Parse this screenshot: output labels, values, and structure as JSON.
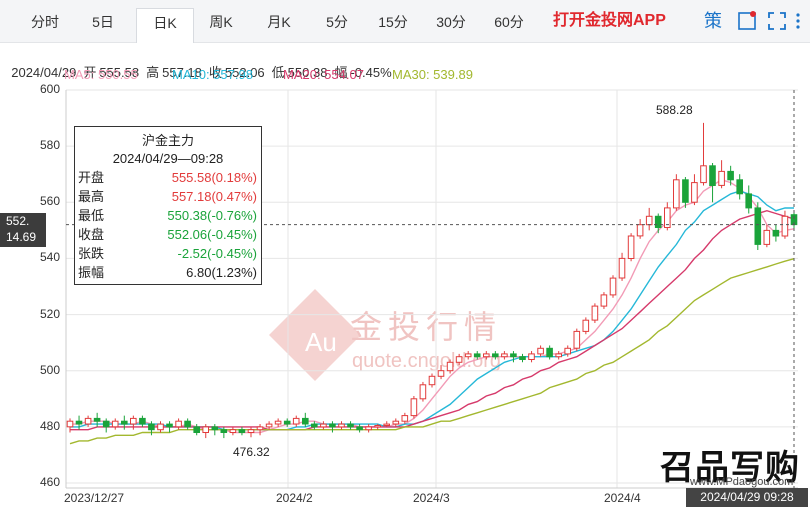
{
  "tabs": [
    "分时",
    "5日",
    "日K",
    "周K",
    "月K",
    "5分",
    "15分",
    "30分",
    "60分"
  ],
  "active_tab": "日K",
  "promo_text": "打开金投网APP",
  "header_icons": [
    "策",
    "alert-icon",
    "fullscreen-icon",
    "menu-icon"
  ],
  "info": {
    "date": "2024/04/29",
    "open_label": "开",
    "open": "555.58",
    "high_label": "高",
    "high": "557.18",
    "close_label": "收",
    "close": "552.06",
    "low_label": "低",
    "low": "550.38",
    "amp_label": "幅",
    "amp": "-0.45%"
  },
  "ma": {
    "ma5_label": "MA5: 550.55",
    "ma10_label": "MA10: 557.98",
    "ma20_label": "MA20: 554.07",
    "ma30_label": "MA30: 539.89"
  },
  "tooltip": {
    "title": "沪金主力",
    "datetime": "2024/04/29—09:28",
    "rows": [
      {
        "k": "开盘",
        "v": "555.58(0.18%)"
      },
      {
        "k": "最高",
        "v": "557.18(0.47%)"
      },
      {
        "k": "最低",
        "v": "550.38(-0.76%)"
      },
      {
        "k": "收盘",
        "v": "552.06(-0.45%)"
      },
      {
        "k": "张跌",
        "v": "-2.52(-0.45%)"
      },
      {
        "k": "振幅",
        "v": "6.80(1.23%)"
      }
    ]
  },
  "last_tag": {
    "price": "552.",
    "sub": "14.69"
  },
  "annotations": {
    "high": "588.28",
    "low": "476.32"
  },
  "watermark": {
    "text": "金投行情",
    "url": "quote.cngold.org"
  },
  "brand": {
    "name": "召品写购",
    "url": "www.MPdaogou.com"
  },
  "crosshair_time": "2024/04/29 09:28",
  "colors": {
    "up": "#e23b3b",
    "down": "#1aa33a",
    "ma5": "#f29bb6",
    "ma10": "#26b8d8",
    "ma20": "#d63a6b",
    "ma30": "#a3b82f"
  },
  "chart_data": {
    "type": "candlestick",
    "y_ticks": [
      460,
      480,
      500,
      520,
      540,
      560,
      580,
      600
    ],
    "ylim": [
      460,
      600
    ],
    "x_tick_labels": [
      "2023/12/27",
      "2024/2",
      "2024/3",
      "2024/4"
    ],
    "grid": true,
    "candles": [
      [
        480,
        482,
        478,
        483
      ],
      [
        482,
        481,
        479,
        484
      ],
      [
        481,
        483,
        480,
        484
      ],
      [
        483,
        482,
        480,
        485
      ],
      [
        482,
        480,
        478,
        483
      ],
      [
        480,
        482,
        479,
        483
      ],
      [
        482,
        481,
        479,
        484
      ],
      [
        481,
        483,
        479,
        484
      ],
      [
        483,
        481,
        480,
        484
      ],
      [
        481,
        479,
        477,
        482
      ],
      [
        479,
        481,
        478,
        482
      ],
      [
        481,
        480,
        478,
        482
      ],
      [
        480,
        482,
        479,
        483
      ],
      [
        482,
        480,
        479,
        483
      ],
      [
        480,
        478,
        477,
        481
      ],
      [
        478,
        480,
        476,
        481
      ],
      [
        480,
        479,
        477,
        481
      ],
      [
        479,
        478,
        476,
        480
      ],
      [
        478,
        479,
        477,
        480
      ],
      [
        479,
        478,
        477,
        480
      ],
      [
        478,
        479,
        476.3,
        480
      ],
      [
        479,
        480,
        477,
        481
      ],
      [
        480,
        481,
        479,
        482
      ],
      [
        481,
        482,
        480,
        483
      ],
      [
        482,
        481,
        480,
        483
      ],
      [
        481,
        483,
        480,
        484
      ],
      [
        483,
        481,
        480,
        485
      ],
      [
        481,
        480,
        479,
        482
      ],
      [
        480,
        481,
        479,
        482
      ],
      [
        481,
        480,
        478,
        482
      ],
      [
        480,
        481,
        479,
        482
      ],
      [
        481,
        480,
        479,
        482
      ],
      [
        480,
        479,
        478,
        481
      ],
      [
        479,
        480,
        478,
        481
      ],
      [
        480,
        480.5,
        479,
        481
      ],
      [
        480.5,
        481,
        480,
        482
      ],
      [
        481,
        482,
        480,
        483
      ],
      [
        482,
        484,
        481,
        485
      ],
      [
        484,
        490,
        483,
        491
      ],
      [
        490,
        495,
        489,
        496
      ],
      [
        495,
        498,
        494,
        499
      ],
      [
        498,
        500,
        497,
        502
      ],
      [
        500,
        503,
        499,
        504
      ],
      [
        503,
        505,
        502,
        506
      ],
      [
        505,
        506,
        504,
        507
      ],
      [
        506,
        505,
        504,
        507
      ],
      [
        505,
        506,
        504,
        507
      ],
      [
        506,
        505,
        504,
        507
      ],
      [
        505,
        506,
        504,
        507
      ],
      [
        506,
        505,
        503,
        507
      ],
      [
        505,
        504,
        503,
        506
      ],
      [
        504,
        506,
        503,
        507
      ],
      [
        506,
        508,
        505,
        509
      ],
      [
        508,
        505,
        504,
        509
      ],
      [
        505,
        506,
        504,
        507
      ],
      [
        506,
        508,
        505,
        509
      ],
      [
        508,
        514,
        507,
        515
      ],
      [
        514,
        518,
        513,
        519
      ],
      [
        518,
        523,
        517,
        524
      ],
      [
        523,
        527,
        522,
        528
      ],
      [
        527,
        533,
        526,
        534
      ],
      [
        533,
        540,
        532,
        542
      ],
      [
        540,
        548,
        539,
        549
      ],
      [
        548,
        552,
        547,
        554
      ],
      [
        552,
        555,
        550,
        558
      ],
      [
        555,
        551,
        549,
        556
      ],
      [
        551,
        558,
        550,
        560
      ],
      [
        558,
        568,
        557,
        570
      ],
      [
        568,
        560,
        558,
        569
      ],
      [
        560,
        567,
        559,
        570
      ],
      [
        567,
        573,
        566,
        588.28
      ],
      [
        573,
        566,
        560,
        574
      ],
      [
        566,
        571,
        565,
        575
      ],
      [
        571,
        568,
        566,
        573
      ],
      [
        568,
        563,
        561,
        570
      ],
      [
        563,
        558,
        556,
        566
      ],
      [
        558,
        545,
        543,
        560
      ],
      [
        545,
        550,
        544,
        552
      ],
      [
        550,
        548,
        546,
        552
      ],
      [
        548,
        555,
        547,
        557
      ],
      [
        555.58,
        552.06,
        550.38,
        557.18
      ]
    ],
    "series": [
      {
        "name": "MA5",
        "values": [
          481,
          481,
          482,
          482,
          482,
          481,
          481,
          481,
          482,
          481,
          480,
          480,
          480,
          481,
          480,
          479,
          479,
          479,
          478,
          478,
          478,
          478,
          479,
          480,
          481,
          481,
          482,
          482,
          481,
          481,
          481,
          481,
          480,
          480,
          480,
          480,
          481,
          481,
          483,
          486,
          490,
          494,
          498,
          501,
          503,
          504,
          505,
          505,
          505,
          505,
          505,
          505,
          505,
          506,
          506,
          507,
          508,
          511,
          514,
          518,
          522,
          527,
          533,
          540,
          546,
          550,
          553,
          557,
          559,
          560,
          564,
          566,
          568,
          567,
          565,
          562,
          558,
          552,
          549,
          550,
          550.55
        ]
      },
      {
        "name": "MA10",
        "values": [
          480,
          480,
          481,
          481,
          481,
          481,
          481,
          481,
          481,
          481,
          481,
          480,
          480,
          480,
          480,
          480,
          480,
          479,
          479,
          479,
          479,
          479,
          479,
          479,
          479,
          480,
          480,
          481,
          481,
          481,
          481,
          481,
          481,
          481,
          481,
          480,
          480,
          481,
          481,
          482,
          484,
          486,
          488,
          491,
          494,
          497,
          499,
          501,
          503,
          504,
          505,
          505,
          505,
          505,
          505,
          506,
          507,
          508,
          509,
          511,
          514,
          518,
          522,
          527,
          532,
          537,
          541,
          545,
          550,
          553,
          557,
          559,
          561,
          563,
          564,
          563,
          562,
          559,
          557,
          558,
          557.98
        ]
      },
      {
        "name": "MA20",
        "values": [
          479,
          479,
          479,
          480,
          480,
          480,
          480,
          480,
          480,
          480,
          480,
          480,
          480,
          480,
          480,
          480,
          480,
          480,
          480,
          480,
          480,
          480,
          479,
          479,
          479,
          479,
          479,
          480,
          480,
          480,
          480,
          480,
          480,
          480,
          480,
          480,
          480,
          480,
          481,
          482,
          483,
          484,
          485,
          486,
          488,
          489,
          491,
          492,
          494,
          495,
          497,
          498,
          500,
          501,
          503,
          504,
          505,
          507,
          509,
          511,
          513,
          515,
          518,
          521,
          524,
          527,
          530,
          533,
          536,
          540,
          543,
          547,
          550,
          552,
          554,
          555,
          556,
          557,
          556,
          555,
          554.07
        ]
      },
      {
        "name": "MA30",
        "values": [
          474,
          475,
          475,
          476,
          476,
          477,
          477,
          477,
          478,
          478,
          478,
          478,
          479,
          479,
          479,
          479,
          479,
          479,
          479,
          479,
          479,
          479,
          479,
          479,
          479,
          479,
          479,
          479,
          479,
          479,
          479,
          479,
          479,
          479,
          479,
          479,
          479,
          480,
          480,
          480,
          481,
          482,
          482,
          483,
          484,
          485,
          486,
          487,
          488,
          489,
          490,
          491,
          492,
          494,
          495,
          496,
          497,
          499,
          500,
          502,
          503,
          505,
          507,
          509,
          511,
          514,
          516,
          519,
          522,
          525,
          527,
          529,
          531,
          533,
          534,
          535,
          536,
          537,
          538,
          539,
          539.89
        ]
      }
    ]
  }
}
